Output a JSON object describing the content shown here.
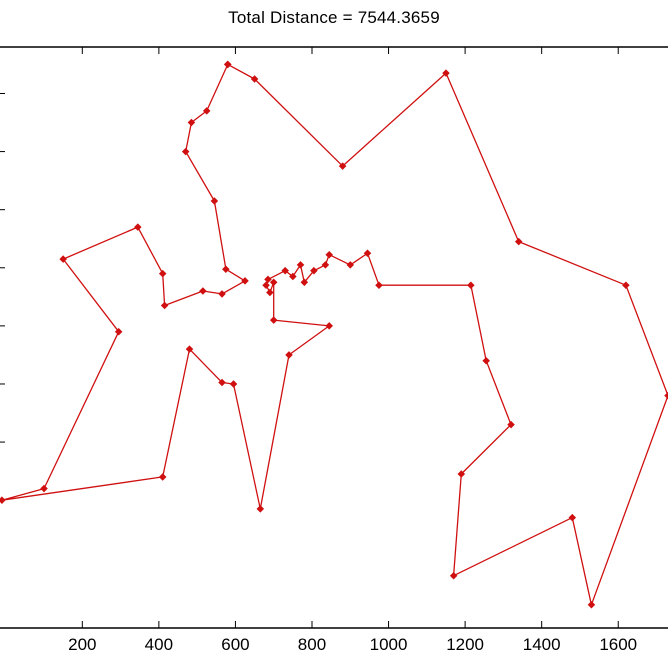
{
  "chart_data": {
    "type": "line",
    "title": "Total Distance = 7544.3659",
    "xlabel": "",
    "ylabel": "",
    "xlim": [
      -15,
      1730
    ],
    "ylim": [
      0,
      2000
    ],
    "x_ticks": [
      200,
      400,
      600,
      800,
      1000,
      1200,
      1400,
      1600
    ],
    "grid": false,
    "line_color": "#d01010",
    "marker": "diamond",
    "series": [
      {
        "name": "",
        "x": [
          580,
          650,
          880,
          1150,
          1340,
          1620,
          1730,
          1530,
          1480,
          1170,
          1190,
          1320,
          1255,
          1215,
          975,
          945,
          900,
          845,
          835,
          805,
          780,
          770,
          750,
          730,
          685,
          680,
          690,
          700,
          700,
          845,
          740,
          665,
          595,
          565,
          480,
          410,
          -10,
          100,
          295,
          150,
          345,
          410,
          415,
          515,
          565,
          625,
          575,
          545,
          470,
          485,
          525,
          580
        ],
        "y": [
          1940,
          1890,
          1590,
          1910,
          1330,
          1180,
          800,
          80,
          380,
          180,
          530,
          700,
          920,
          1180,
          1180,
          1290,
          1250,
          1285,
          1250,
          1230,
          1190,
          1250,
          1210,
          1230,
          1200,
          1180,
          1155,
          1190,
          1060,
          1040,
          940,
          410,
          840,
          845,
          960,
          520,
          440,
          480,
          1020,
          1270,
          1380,
          1220,
          1110,
          1160,
          1150,
          1195,
          1235,
          1470,
          1640,
          1740,
          1780,
          1940
        ]
      }
    ]
  }
}
